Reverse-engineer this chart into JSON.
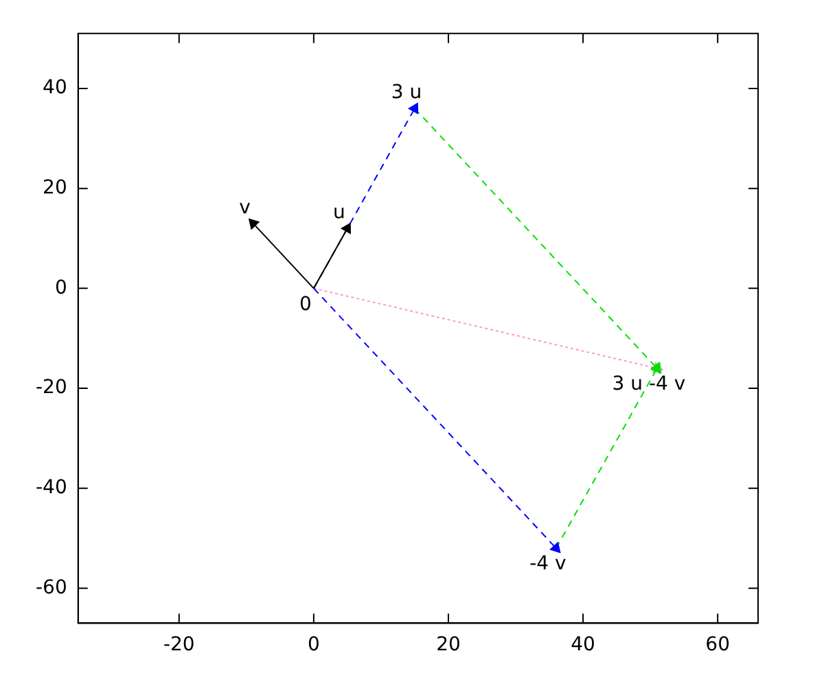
{
  "chart_data": {
    "type": "line",
    "xlim": [
      -35,
      66
    ],
    "ylim": [
      -67,
      51
    ],
    "xticks": [
      -20,
      0,
      20,
      40,
      60
    ],
    "yticks": [
      -60,
      -40,
      -20,
      0,
      20,
      40
    ],
    "grid": false,
    "legend": false,
    "marker": "triangle",
    "series": [
      {
        "color": "#000000",
        "x": [
          0,
          5
        ],
        "values": [
          0,
          12
        ],
        "line_style": "solid"
      },
      {
        "color": "#000000",
        "x": [
          0,
          -9
        ],
        "values": [
          0,
          13
        ],
        "line_style": "solid"
      },
      {
        "color": "#0000ff",
        "x": [
          0,
          15
        ],
        "values": [
          0,
          36
        ],
        "line_style": "dashed"
      },
      {
        "color": "#0000ff",
        "x": [
          0,
          36
        ],
        "values": [
          0,
          -52
        ],
        "line_style": "dashed"
      },
      {
        "color": "#00e000",
        "x": [
          15,
          51
        ],
        "values": [
          36,
          -16
        ],
        "line_style": "dashed"
      },
      {
        "color": "#00e000",
        "x": [
          36,
          51
        ],
        "values": [
          -52,
          -16
        ],
        "line_style": "dashed"
      },
      {
        "color": "#ff99cc",
        "x": [
          0,
          51
        ],
        "values": [
          0,
          -16
        ],
        "line_style": "dotted"
      }
    ],
    "annotations": [
      {
        "text": "u",
        "x": 5,
        "y": 12
      },
      {
        "text": "v",
        "x": -9,
        "y": 13
      },
      {
        "text": "3 u",
        "x": 15,
        "y": 36
      },
      {
        "text": "-4 v",
        "x": 36,
        "y": -52
      },
      {
        "text": "3 u -4 v",
        "x": 51,
        "y": -16
      },
      {
        "text": "0",
        "x": 0,
        "y": 0
      }
    ]
  }
}
